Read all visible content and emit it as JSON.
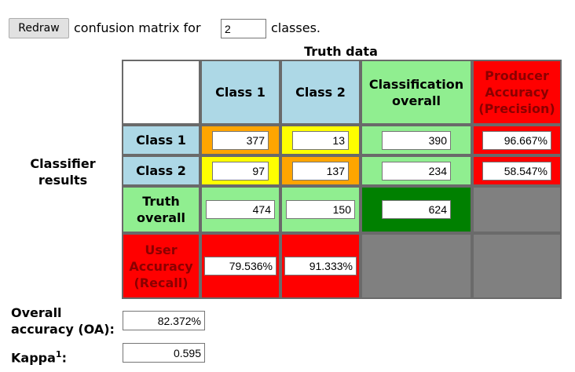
{
  "header": {
    "redraw_label": "Redraw",
    "prefix": "confusion matrix for",
    "class_count": "2",
    "suffix": "classes."
  },
  "truth_data_label": "Truth data",
  "classifier_results_label": "Classifier results",
  "columns": {
    "class1": "Class 1",
    "class2": "Class 2",
    "classification_overall": "Classification overall",
    "producer_accuracy": "Producer Accuracy (Precision)"
  },
  "rows": {
    "class1": "Class 1",
    "class2": "Class 2",
    "truth_overall": "Truth overall",
    "user_accuracy": "User Accuracy (Recall)"
  },
  "matrix": {
    "r1": {
      "c1": "377",
      "c2": "13",
      "overall": "390",
      "producer": "96.667%"
    },
    "r2": {
      "c1": "97",
      "c2": "137",
      "overall": "234",
      "producer": "58.547%"
    },
    "truth": {
      "c1": "474",
      "c2": "150",
      "overall": "624"
    },
    "user": {
      "c1": "79.536%",
      "c2": "91.333%"
    }
  },
  "summary": {
    "oa_label": "Overall accuracy (OA):",
    "oa_value": "82.372%",
    "kappa_label": "Kappa",
    "kappa_sup": "1",
    "kappa_colon": ":",
    "kappa_value": "0.595"
  },
  "colors": {
    "blue_header": "#add8e6",
    "green": "#90ee90",
    "red": "#ff0000",
    "orange": "#ffa500",
    "yellow": "#ffff00",
    "dark_green": "#008000",
    "gray": "#808080",
    "dark_red_text": "#8b0000"
  }
}
